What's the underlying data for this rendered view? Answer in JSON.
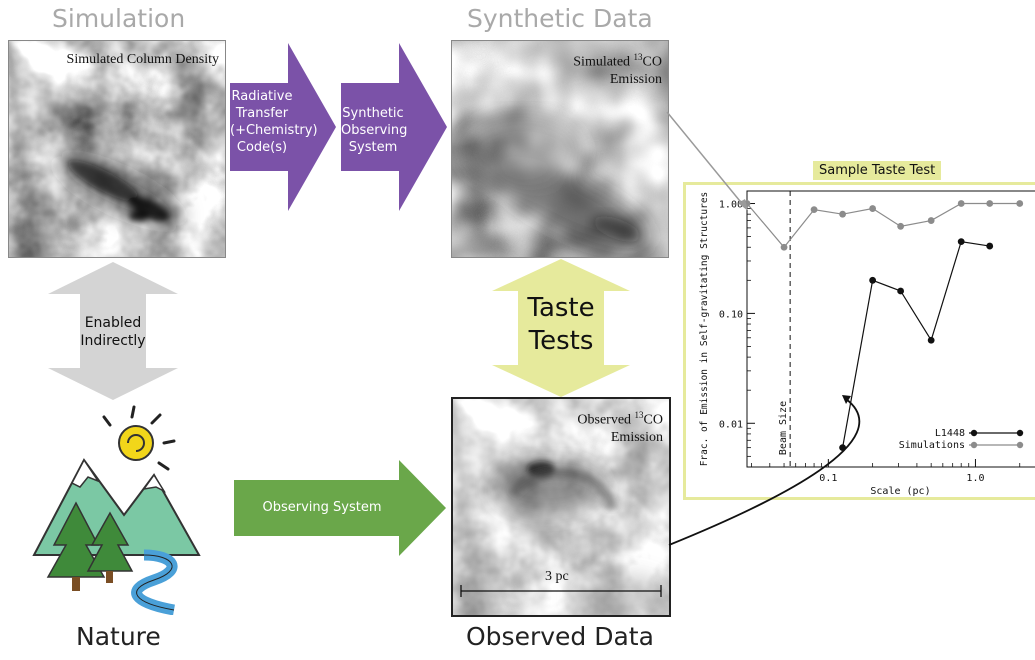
{
  "headings": {
    "simulation": "Simulation",
    "synthetic": "Synthetic Data",
    "nature": "Nature",
    "observed": "Observed Data"
  },
  "panels": {
    "sim_label": "Simulated Column Density",
    "synth_label_1": "Simulated ",
    "synth_label_sup": "13",
    "synth_label_2": "CO",
    "synth_label_3": "Emission",
    "obs_label_1": "Observed ",
    "obs_label_sup": "13",
    "obs_label_2": "CO",
    "obs_label_3": "Emission",
    "scale_bar": "3 pc"
  },
  "arrows": {
    "radiative": [
      "Radiative",
      "Transfer",
      "(+Chemistry)",
      "Code(s)"
    ],
    "synthetic_obs": [
      "Synthetic",
      "Observing",
      "System"
    ],
    "enabled": [
      "Enabled",
      "Indirectly"
    ],
    "taste": [
      "Taste",
      "Tests"
    ],
    "observing": "Observing System"
  },
  "colors": {
    "purple": "#7b52a8",
    "green": "#6aa74a",
    "gray_arrow": "#d4d4d4",
    "yellow_arrow": "#e6ea9c",
    "heading_gray": "#a9a9a9"
  },
  "chart_tag": "Sample Taste Test",
  "chart_data": {
    "type": "line",
    "xlabel": "Scale (pc)",
    "ylabel": "Frac. of Emission in Self-gravitating Structures",
    "x_log": true,
    "y_log": true,
    "xlim": [
      0.028,
      2.5
    ],
    "ylim": [
      0.004,
      1.3
    ],
    "xticks": [
      {
        "v": 0.1,
        "label": "0.1"
      },
      {
        "v": 1.0,
        "label": "1.0"
      }
    ],
    "yticks": [
      {
        "v": 1.0,
        "label": "1.00"
      },
      {
        "v": 0.1,
        "label": "0.10"
      },
      {
        "v": 0.01,
        "label": "0.01"
      }
    ],
    "beam_line_x": 0.055,
    "beam_label": "Beam Size",
    "series": [
      {
        "name": "L1448",
        "color": "#111111",
        "x": [
          0.125,
          0.2,
          0.31,
          0.5,
          0.8,
          1.25
        ],
        "y": [
          0.006,
          0.2,
          0.16,
          0.057,
          0.45,
          0.41
        ]
      },
      {
        "name": "Simulations",
        "color": "#8c8c8c",
        "x": [
          0.028,
          0.05,
          0.08,
          0.125,
          0.2,
          0.31,
          0.5,
          0.8,
          1.25,
          2.0
        ],
        "y": [
          1.0,
          0.4,
          0.88,
          0.8,
          0.9,
          0.62,
          0.7,
          1.0,
          1.0,
          1.0
        ]
      }
    ],
    "legend_position": "bottom-right"
  }
}
